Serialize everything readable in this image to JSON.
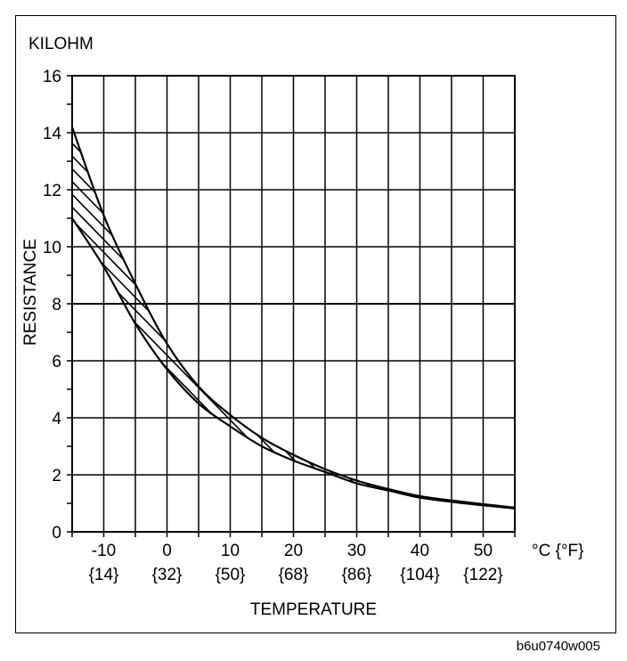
{
  "chart_data": {
    "type": "line",
    "unit_label": "KILOHM",
    "ylabel": "RESISTANCE",
    "xlabel": "TEMPERATURE",
    "x_unit_label": "°C {°F}",
    "xlim": [
      -15,
      55
    ],
    "ylim": [
      0,
      16
    ],
    "x_ticks": [
      -10,
      0,
      10,
      20,
      30,
      40,
      50
    ],
    "x_tick_labels_c": [
      "-10",
      "0",
      "10",
      "20",
      "30",
      "40",
      "50"
    ],
    "x_tick_labels_f": [
      "{14}",
      "{32}",
      "{50}",
      "{68}",
      "{86}",
      "{104}",
      "{122}"
    ],
    "y_ticks": [
      0,
      2,
      4,
      6,
      8,
      10,
      12,
      14,
      16
    ],
    "y_tick_labels": [
      "0",
      "2",
      "4",
      "6",
      "8",
      "10",
      "12",
      "14",
      "16"
    ],
    "grid": true,
    "series": [
      {
        "band": "upper",
        "x": [
          -15,
          -10,
          -5,
          0,
          5,
          10,
          15,
          20,
          25,
          30,
          35,
          40,
          45,
          50,
          55
        ],
        "values": [
          14.2,
          11.1,
          8.7,
          6.6,
          5.1,
          4.1,
          3.3,
          2.7,
          2.2,
          1.8,
          1.5,
          1.25,
          1.1,
          0.97,
          0.85
        ]
      },
      {
        "band": "lower",
        "x": [
          -15,
          -10,
          -5,
          0,
          5,
          10,
          15,
          20,
          25,
          30,
          35,
          40,
          45,
          50,
          55
        ],
        "values": [
          11.0,
          9.3,
          7.3,
          5.7,
          4.5,
          3.7,
          3.0,
          2.5,
          2.1,
          1.7,
          1.45,
          1.2,
          1.05,
          0.93,
          0.82
        ]
      }
    ],
    "band_fill": "hatched"
  },
  "figure_code": "b6u0740w005",
  "colors": {
    "ink": "#000000",
    "background": "#ffffff"
  }
}
